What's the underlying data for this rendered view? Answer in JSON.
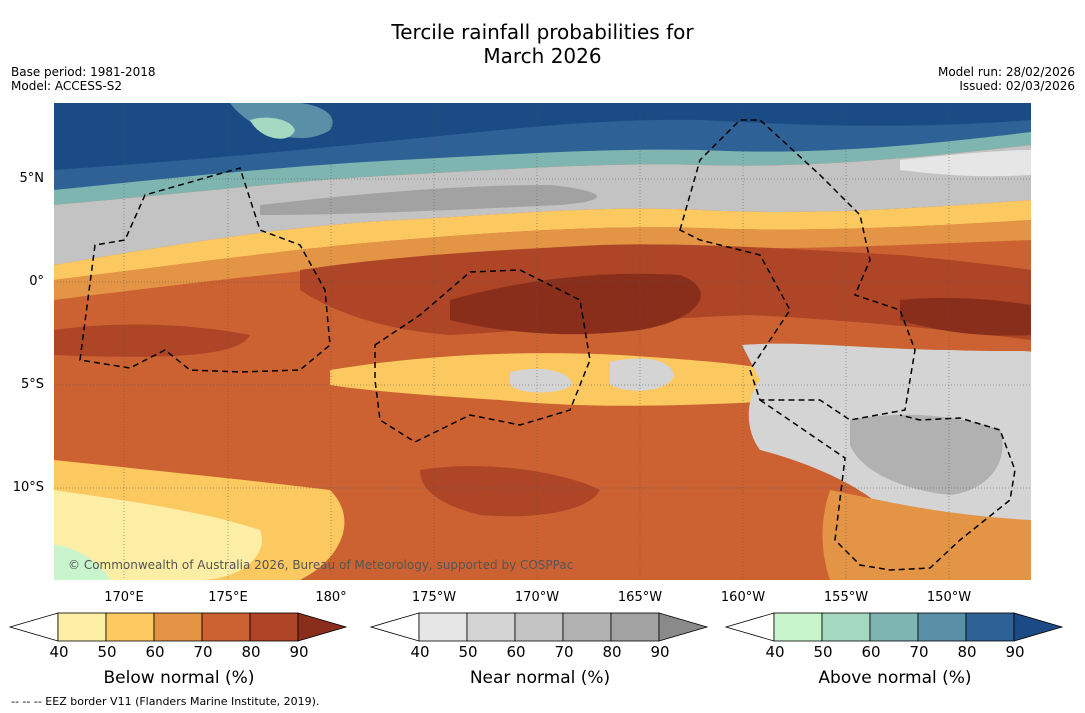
{
  "title_line1": "Tercile rainfall probabilities for",
  "title_line2": "March 2026",
  "base_period": "Base period: 1981-2018",
  "model": "Model: ACCESS-S2",
  "model_run": "Model run: 28/02/2026",
  "issued": "Issued: 02/03/2026",
  "lat_labels": [
    "5°N",
    "0°",
    "5°S",
    "10°S"
  ],
  "lon_labels": [
    "170°E",
    "175°E",
    "180°",
    "175°W",
    "170°W",
    "165°W",
    "160°W",
    "155°W",
    "150°W"
  ],
  "credit": "© Commonwealth of Australia 2026, Bureau of Meteorology, supported by COSPPac",
  "colorbars": [
    {
      "title": "Below normal (%)",
      "ticks": [
        "40",
        "50",
        "60",
        "70",
        "80",
        "90"
      ],
      "colors": [
        "#ffffff",
        "#fdeea6",
        "#fcc860",
        "#e39445",
        "#cc6232",
        "#ad4526",
        "#8a2e1c"
      ]
    },
    {
      "title": "Near normal (%)",
      "ticks": [
        "40",
        "50",
        "60",
        "70",
        "80",
        "90"
      ],
      "colors": [
        "#ffffff",
        "#e6e6e6",
        "#d4d4d4",
        "#c3c3c3",
        "#b1b1b1",
        "#a2a2a2",
        "#8a8a8a"
      ]
    },
    {
      "title": "Above normal (%)",
      "ticks": [
        "40",
        "50",
        "60",
        "70",
        "80",
        "90"
      ],
      "colors": [
        "#ffffff",
        "#c8f5cc",
        "#a4d8c0",
        "#7eb5b0",
        "#5a8fa8",
        "#2e6296",
        "#1a4b85"
      ]
    }
  ],
  "footer": "-- -- -- EEZ border V11 (Flanders Marine Institute, 2019)."
}
